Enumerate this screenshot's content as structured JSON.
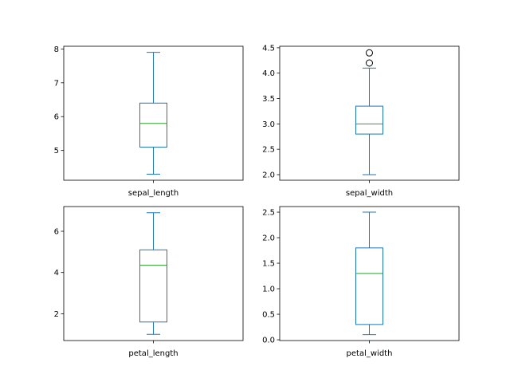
{
  "chart_data": [
    {
      "type": "box",
      "category": "sepal_length",
      "whisker_low": 4.3,
      "q1": 5.1,
      "median": 5.8,
      "q3": 6.4,
      "whisker_high": 7.9,
      "outliers": [],
      "ylim": [
        4.12,
        8.08
      ],
      "yticks": [
        5,
        6,
        7,
        8
      ],
      "ytick_labels": [
        "5",
        "6",
        "7",
        "8"
      ]
    },
    {
      "type": "box",
      "category": "sepal_width",
      "whisker_low": 2.0,
      "q1": 2.8,
      "median": 3.0,
      "q3": 3.35,
      "whisker_high": 4.1,
      "outliers": [
        4.2,
        4.4
      ],
      "ylim": [
        1.89,
        4.53
      ],
      "yticks": [
        2.0,
        2.5,
        3.0,
        3.5,
        4.0,
        4.5
      ],
      "ytick_labels": [
        "2.0",
        "2.5",
        "3.0",
        "3.5",
        "4.0",
        "4.5"
      ]
    },
    {
      "type": "box",
      "category": "petal_length",
      "whisker_low": 1.0,
      "q1": 1.6,
      "median": 4.35,
      "q3": 5.1,
      "whisker_high": 6.9,
      "outliers": [],
      "ylim": [
        0.7,
        7.2
      ],
      "yticks": [
        2,
        4,
        6
      ],
      "ytick_labels": [
        "2",
        "4",
        "6"
      ]
    },
    {
      "type": "box",
      "category": "petal_width",
      "whisker_low": 0.1,
      "q1": 0.3,
      "median": 1.3,
      "q3": 1.8,
      "whisker_high": 2.5,
      "outliers": [],
      "ylim": [
        -0.015,
        2.61
      ],
      "yticks": [
        0.0,
        0.5,
        1.0,
        1.5,
        2.0,
        2.5
      ],
      "ytick_labels": [
        "0.0",
        "0.5",
        "1.0",
        "1.5",
        "2.0",
        "2.5"
      ]
    }
  ],
  "colors": {
    "box": "#1f77b4",
    "median": "#2ca02c",
    "outlier": "#000000"
  }
}
